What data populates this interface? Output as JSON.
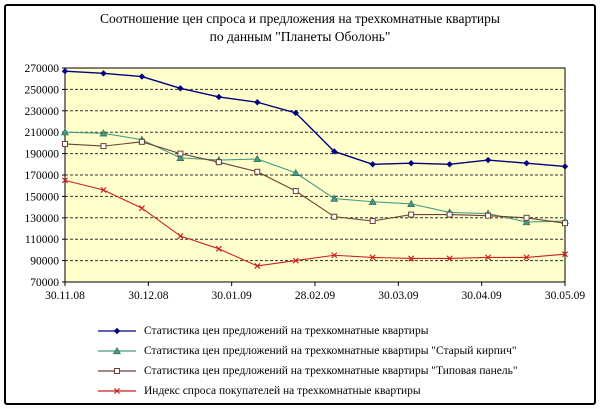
{
  "title": {
    "line1": "Соотношение цен спроса и предложения на трехкомнатные квартиры",
    "line2": "по данным \"Планеты Оболонь\""
  },
  "colors": {
    "plot_background": "#FFFFCC",
    "gridline": "#303030",
    "axis": "#000000",
    "frame_border": "#000000",
    "series_blue": "#000080",
    "series_teal": "#4A9B84",
    "series_brown": "#6B4036",
    "series_red": "#CC2222"
  },
  "chart_data": {
    "type": "line",
    "title": "Соотношение цен спроса и предложения на трехкомнатные квартиры по данным \"Планеты Оболонь\"",
    "x_tick_labels": [
      "30.11.08",
      "30.12.08",
      "30.01.09",
      "28.02.09",
      "30.03.09",
      "30.04.09",
      "30.05.09"
    ],
    "y_tick_labels": [
      "270000",
      "250000",
      "230000",
      "210000",
      "190000",
      "170000",
      "150000",
      "130000",
      "110000",
      "90000",
      "70000"
    ],
    "ylim": [
      70000,
      270000
    ],
    "y_step": 20000,
    "grid": "horizontal-dashed",
    "plot_bg": "#FFFFCC",
    "legend_position": "bottom-left",
    "n_points": 14,
    "series": [
      {
        "name": "Статистика цен предложений на трехкомнатные квартиры",
        "color": "#000080",
        "marker": "diamond",
        "values": [
          267000,
          265000,
          262000,
          251000,
          243000,
          238000,
          228000,
          192000,
          180000,
          181000,
          180000,
          184000,
          181000,
          178000
        ]
      },
      {
        "name": "Статистика цен предложений  на трехкомнатные квартиры \"Старый кирпич\"",
        "color": "#4A9B84",
        "marker": "triangle",
        "values": [
          210000,
          209000,
          203000,
          186000,
          184000,
          185000,
          172000,
          148000,
          145000,
          143000,
          135000,
          134000,
          126000,
          127000
        ]
      },
      {
        "name": "Статистика цен предложений на трехкомнатные квартиры \"Типовая панель\"",
        "color": "#6B4036",
        "marker": "square-open",
        "values": [
          199000,
          197000,
          201000,
          190000,
          182000,
          173000,
          155000,
          131000,
          127000,
          133000,
          133000,
          132000,
          130000,
          125000
        ]
      },
      {
        "name": "Индекс спроса покупателей  на трехкомнатные квартиры",
        "color": "#CC2222",
        "marker": "x",
        "values": [
          165000,
          156000,
          139000,
          113000,
          101000,
          85000,
          90000,
          95000,
          93000,
          92000,
          92000,
          93000,
          93000,
          96000
        ]
      }
    ]
  }
}
